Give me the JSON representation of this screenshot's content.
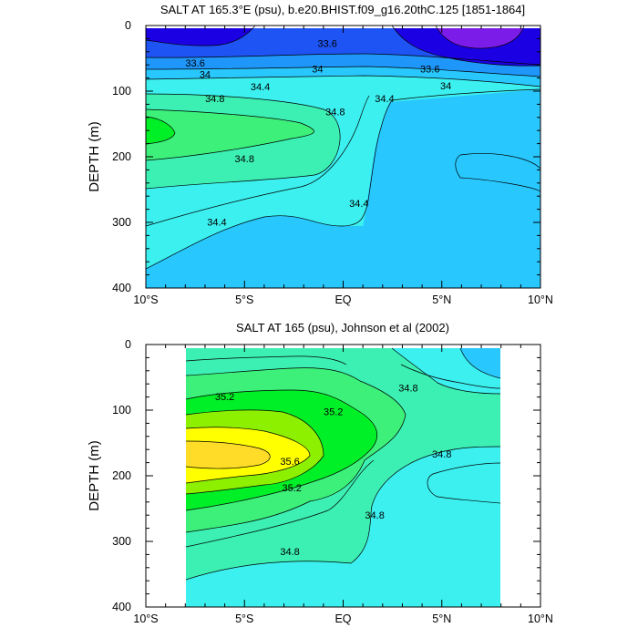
{
  "chart_data": [
    {
      "type": "contour",
      "title": "SALT AT 165.3°E (psu), b.e20.BHIST.f09_g16.20thC.125 [1851-1864]",
      "ylabel": "DEPTH (m)",
      "xlabel": "",
      "x_ticks": [
        "10°S",
        "5°S",
        "EQ",
        "5°N",
        "10°N"
      ],
      "y_ticks": [
        "0",
        "100",
        "200",
        "300",
        "400"
      ],
      "xlim": [
        -10,
        10
      ],
      "ylim": [
        400,
        0
      ],
      "y_inverted": true,
      "contour_labels": [
        {
          "text": "33.6",
          "lat": -0.8,
          "depth": 27
        },
        {
          "text": "33.6",
          "lat": -7.5,
          "depth": 57
        },
        {
          "text": "34",
          "lat": -7.0,
          "depth": 74
        },
        {
          "text": "34",
          "lat": -1.3,
          "depth": 66
        },
        {
          "text": "33.6",
          "lat": 4.4,
          "depth": 66
        },
        {
          "text": "34",
          "lat": 5.2,
          "depth": 92
        },
        {
          "text": "34.4",
          "lat": -4.2,
          "depth": 93
        },
        {
          "text": "34.8",
          "lat": -6.5,
          "depth": 111
        },
        {
          "text": "34.8",
          "lat": -0.4,
          "depth": 131
        },
        {
          "text": "34.4",
          "lat": 2.1,
          "depth": 111
        },
        {
          "text": "34.8",
          "lat": -5.0,
          "depth": 203
        },
        {
          "text": "34.4",
          "lat": 0.8,
          "depth": 271
        },
        {
          "text": "34.4",
          "lat": -6.4,
          "depth": 299
        }
      ]
    },
    {
      "type": "contour",
      "title": "SALT AT 165 (psu), Johnson et al (2002)",
      "ylabel": "DEPTH (m)",
      "xlabel": "",
      "x_ticks": [
        "10°S",
        "5°S",
        "EQ",
        "5°N",
        "10°N"
      ],
      "y_ticks": [
        "0",
        "100",
        "200",
        "300",
        "400"
      ],
      "xlim": [
        -10,
        10
      ],
      "ylim": [
        400,
        0
      ],
      "y_inverted": true,
      "data_lat_range": [
        -8,
        8
      ],
      "contour_labels": [
        {
          "text": "35.2",
          "lat": -6.0,
          "depth": 79
        },
        {
          "text": "35.2",
          "lat": -0.5,
          "depth": 102
        },
        {
          "text": "34.8",
          "lat": 3.3,
          "depth": 66
        },
        {
          "text": "35.6",
          "lat": -2.7,
          "depth": 178
        },
        {
          "text": "35.2",
          "lat": -2.6,
          "depth": 218
        },
        {
          "text": "34.8",
          "lat": 5.0,
          "depth": 167
        },
        {
          "text": "34.8",
          "lat": 1.6,
          "depth": 260
        },
        {
          "text": "34.8",
          "lat": -2.7,
          "depth": 315
        }
      ]
    }
  ],
  "colors": {
    "s33_2": "#1c00e4",
    "s33_0": "#7c1ce8",
    "s33_6": "#1f54f4",
    "s34_0": "#1e96fa",
    "s34_4": "#28c8ff",
    "s34_6": "#3cf0f0",
    "s34_8": "#3cf0b4",
    "s35_0": "#3cf07a",
    "s35_2": "#00f028",
    "s35_4": "#8cf000",
    "s35_6": "#ffff00",
    "s35_8": "#ffdc28",
    "line": "#000000"
  }
}
